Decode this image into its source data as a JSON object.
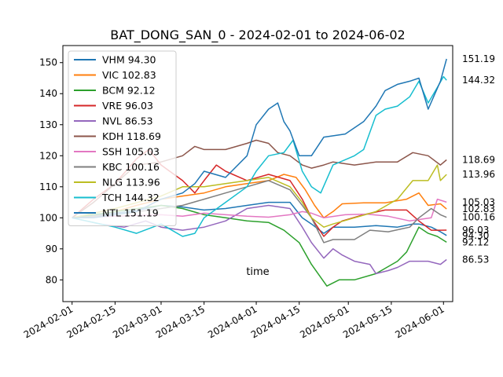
{
  "chart_data": {
    "type": "line",
    "title": "BAT_DONG_SAN_0 - 2024-02-01 to 2024-06-02",
    "xlabel": "time",
    "ylabel": "",
    "xlim": [
      "2024-01-29",
      "2024-06-04"
    ],
    "ylim": [
      73,
      155.5
    ],
    "x_ticks": [
      "2024-02-01",
      "2024-02-15",
      "2024-03-01",
      "2024-03-15",
      "2024-04-01",
      "2024-04-15",
      "2024-05-01",
      "2024-05-15",
      "2024-06-01"
    ],
    "y_ticks": [
      80,
      90,
      100,
      110,
      120,
      130,
      140,
      150
    ],
    "grid": false,
    "legend_position": "upper-left",
    "series": [
      {
        "name": "VHM",
        "last_label": "VHM 94.30",
        "end_value": "94.30",
        "color": "#1f77b4",
        "points": [
          [
            "2024-02-01",
            100
          ],
          [
            "2024-02-08",
            100.8
          ],
          [
            "2024-02-15",
            101.5
          ],
          [
            "2024-02-22",
            102.3
          ],
          [
            "2024-03-01",
            104
          ],
          [
            "2024-03-08",
            103.5
          ],
          [
            "2024-03-15",
            102.5
          ],
          [
            "2024-03-22",
            103
          ],
          [
            "2024-03-29",
            104
          ],
          [
            "2024-04-05",
            105
          ],
          [
            "2024-04-12",
            105
          ],
          [
            "2024-04-16",
            100
          ],
          [
            "2024-04-19",
            98
          ],
          [
            "2024-04-23",
            95
          ],
          [
            "2024-04-26",
            97
          ],
          [
            "2024-05-03",
            97
          ],
          [
            "2024-05-10",
            97.5
          ],
          [
            "2024-05-17",
            97
          ],
          [
            "2024-05-22",
            98
          ],
          [
            "2024-05-24",
            98
          ],
          [
            "2024-05-28",
            97
          ],
          [
            "2024-05-31",
            95.5
          ],
          [
            "2024-06-02",
            94.3
          ]
        ]
      },
      {
        "name": "VIC",
        "last_label": "VIC 102.83",
        "end_value": "102.83",
        "color": "#ff7f0e",
        "points": [
          [
            "2024-02-01",
            100
          ],
          [
            "2024-02-08",
            101
          ],
          [
            "2024-02-15",
            102
          ],
          [
            "2024-02-22",
            104
          ],
          [
            "2024-03-01",
            106
          ],
          [
            "2024-03-08",
            107
          ],
          [
            "2024-03-15",
            108
          ],
          [
            "2024-03-22",
            110
          ],
          [
            "2024-03-29",
            111
          ],
          [
            "2024-04-05",
            112
          ],
          [
            "2024-04-10",
            114
          ],
          [
            "2024-04-14",
            113
          ],
          [
            "2024-04-17",
            109
          ],
          [
            "2024-04-20",
            104
          ],
          [
            "2024-04-23",
            100
          ],
          [
            "2024-04-26",
            102
          ],
          [
            "2024-04-29",
            104.5
          ],
          [
            "2024-05-06",
            104.8
          ],
          [
            "2024-05-13",
            104.8
          ],
          [
            "2024-05-20",
            106
          ],
          [
            "2024-05-24",
            108
          ],
          [
            "2024-05-27",
            104
          ],
          [
            "2024-05-31",
            104.5
          ],
          [
            "2024-06-02",
            102.83
          ]
        ]
      },
      {
        "name": "BCM",
        "last_label": "BCM 92.12",
        "end_value": "92.12",
        "color": "#2ca02c",
        "points": [
          [
            "2024-02-01",
            100
          ],
          [
            "2024-02-15",
            102
          ],
          [
            "2024-03-01",
            104
          ],
          [
            "2024-03-08",
            103
          ],
          [
            "2024-03-15",
            101
          ],
          [
            "2024-03-22",
            100
          ],
          [
            "2024-03-29",
            99
          ],
          [
            "2024-04-05",
            98.5
          ],
          [
            "2024-04-10",
            96
          ],
          [
            "2024-04-15",
            92
          ],
          [
            "2024-04-19",
            85
          ],
          [
            "2024-04-24",
            78
          ],
          [
            "2024-04-28",
            80
          ],
          [
            "2024-05-03",
            80
          ],
          [
            "2024-05-10",
            82
          ],
          [
            "2024-05-17",
            86
          ],
          [
            "2024-05-20",
            89
          ],
          [
            "2024-05-24",
            97
          ],
          [
            "2024-05-27",
            95
          ],
          [
            "2024-05-30",
            94
          ],
          [
            "2024-06-02",
            92.12
          ]
        ]
      },
      {
        "name": "VRE",
        "last_label": "VRE 96.03",
        "end_value": "96.03",
        "color": "#d62728",
        "points": [
          [
            "2024-02-01",
            100
          ],
          [
            "2024-02-08",
            106
          ],
          [
            "2024-02-15",
            111
          ],
          [
            "2024-02-22",
            119
          ],
          [
            "2024-02-26",
            122
          ],
          [
            "2024-03-01",
            117
          ],
          [
            "2024-03-08",
            112
          ],
          [
            "2024-03-12",
            108
          ],
          [
            "2024-03-15",
            112
          ],
          [
            "2024-03-19",
            117
          ],
          [
            "2024-03-22",
            115
          ],
          [
            "2024-03-29",
            112
          ],
          [
            "2024-04-05",
            114
          ],
          [
            "2024-04-12",
            112
          ],
          [
            "2024-04-16",
            106
          ],
          [
            "2024-04-19",
            100
          ],
          [
            "2024-04-23",
            94
          ],
          [
            "2024-04-26",
            97
          ],
          [
            "2024-04-29",
            99
          ],
          [
            "2024-05-06",
            101
          ],
          [
            "2024-05-13",
            102.5
          ],
          [
            "2024-05-20",
            102.5
          ],
          [
            "2024-05-24",
            99
          ],
          [
            "2024-05-28",
            96
          ],
          [
            "2024-05-31",
            96
          ],
          [
            "2024-06-02",
            96.03
          ]
        ]
      },
      {
        "name": "NVL",
        "last_label": "NVL 86.53",
        "end_value": "86.53",
        "color": "#9467bd",
        "points": [
          [
            "2024-02-01",
            100
          ],
          [
            "2024-02-10",
            98
          ],
          [
            "2024-02-18",
            97
          ],
          [
            "2024-02-25",
            99
          ],
          [
            "2024-03-01",
            97
          ],
          [
            "2024-03-08",
            96
          ],
          [
            "2024-03-15",
            97
          ],
          [
            "2024-03-22",
            99
          ],
          [
            "2024-03-29",
            103
          ],
          [
            "2024-04-05",
            104
          ],
          [
            "2024-04-12",
            103
          ],
          [
            "2024-04-16",
            97
          ],
          [
            "2024-04-19",
            92
          ],
          [
            "2024-04-23",
            87
          ],
          [
            "2024-04-26",
            90
          ],
          [
            "2024-04-29",
            88
          ],
          [
            "2024-05-03",
            86
          ],
          [
            "2024-05-08",
            85
          ],
          [
            "2024-05-10",
            82
          ],
          [
            "2024-05-14",
            83
          ],
          [
            "2024-05-17",
            84
          ],
          [
            "2024-05-21",
            86
          ],
          [
            "2024-05-27",
            86
          ],
          [
            "2024-05-31",
            85
          ],
          [
            "2024-06-02",
            86.53
          ]
        ]
      },
      {
        "name": "KDH",
        "last_label": "KDH 118.69",
        "end_value": "118.69",
        "color": "#8c564b",
        "points": [
          [
            "2024-02-01",
            100
          ],
          [
            "2024-02-08",
            105
          ],
          [
            "2024-02-15",
            111
          ],
          [
            "2024-02-22",
            117
          ],
          [
            "2024-03-01",
            118
          ],
          [
            "2024-03-08",
            120
          ],
          [
            "2024-03-12",
            123
          ],
          [
            "2024-03-15",
            122
          ],
          [
            "2024-03-22",
            122
          ],
          [
            "2024-03-29",
            124
          ],
          [
            "2024-04-01",
            125
          ],
          [
            "2024-04-05",
            124
          ],
          [
            "2024-04-08",
            121
          ],
          [
            "2024-04-12",
            120
          ],
          [
            "2024-04-16",
            117
          ],
          [
            "2024-04-19",
            116
          ],
          [
            "2024-04-23",
            117
          ],
          [
            "2024-04-26",
            118
          ],
          [
            "2024-05-03",
            117
          ],
          [
            "2024-05-10",
            118
          ],
          [
            "2024-05-17",
            118
          ],
          [
            "2024-05-22",
            121
          ],
          [
            "2024-05-27",
            120
          ],
          [
            "2024-05-31",
            117
          ],
          [
            "2024-06-02",
            118.69
          ]
        ]
      },
      {
        "name": "SSH",
        "last_label": "SSH 105.03",
        "end_value": "105.03",
        "color": "#e377c2",
        "points": [
          [
            "2024-02-01",
            100
          ],
          [
            "2024-02-15",
            100.5
          ],
          [
            "2024-03-01",
            101
          ],
          [
            "2024-03-08",
            100.5
          ],
          [
            "2024-03-15",
            101.5
          ],
          [
            "2024-03-22",
            101
          ],
          [
            "2024-03-29",
            100.5
          ],
          [
            "2024-04-05",
            100.2
          ],
          [
            "2024-04-12",
            101
          ],
          [
            "2024-04-16",
            102
          ],
          [
            "2024-04-19",
            101.5
          ],
          [
            "2024-04-23",
            100
          ],
          [
            "2024-04-30",
            101
          ],
          [
            "2024-05-07",
            101.2
          ],
          [
            "2024-05-14",
            100.5
          ],
          [
            "2024-05-21",
            99
          ],
          [
            "2024-05-28",
            100
          ],
          [
            "2024-05-30",
            106
          ],
          [
            "2024-06-02",
            105.03
          ]
        ]
      },
      {
        "name": "KBC",
        "last_label": "KBC 100.16",
        "end_value": "100.16",
        "color": "#7f7f7f",
        "points": [
          [
            "2024-02-01",
            100
          ],
          [
            "2024-02-15",
            101
          ],
          [
            "2024-03-01",
            103
          ],
          [
            "2024-03-08",
            104
          ],
          [
            "2024-03-15",
            106
          ],
          [
            "2024-03-22",
            108
          ],
          [
            "2024-03-29",
            110
          ],
          [
            "2024-04-05",
            112
          ],
          [
            "2024-04-12",
            109
          ],
          [
            "2024-04-16",
            104
          ],
          [
            "2024-04-19",
            100
          ],
          [
            "2024-04-23",
            92
          ],
          [
            "2024-04-26",
            93
          ],
          [
            "2024-05-03",
            93
          ],
          [
            "2024-05-08",
            96
          ],
          [
            "2024-05-14",
            95.5
          ],
          [
            "2024-05-21",
            97
          ],
          [
            "2024-05-24",
            100
          ],
          [
            "2024-05-28",
            103
          ],
          [
            "2024-05-31",
            101
          ],
          [
            "2024-06-02",
            100.16
          ]
        ]
      },
      {
        "name": "NLG",
        "last_label": "NLG 113.96",
        "end_value": "113.96",
        "color": "#bcbd22",
        "points": [
          [
            "2024-02-01",
            100
          ],
          [
            "2024-02-15",
            103
          ],
          [
            "2024-03-01",
            107
          ],
          [
            "2024-03-08",
            110
          ],
          [
            "2024-03-15",
            110
          ],
          [
            "2024-03-22",
            111
          ],
          [
            "2024-03-29",
            112
          ],
          [
            "2024-04-05",
            113
          ],
          [
            "2024-04-12",
            110
          ],
          [
            "2024-04-16",
            105
          ],
          [
            "2024-04-19",
            100
          ],
          [
            "2024-04-23",
            97
          ],
          [
            "2024-04-26",
            98
          ],
          [
            "2024-05-03",
            100
          ],
          [
            "2024-05-10",
            102
          ],
          [
            "2024-05-17",
            106
          ],
          [
            "2024-05-22",
            112
          ],
          [
            "2024-05-27",
            112
          ],
          [
            "2024-05-30",
            117
          ],
          [
            "2024-05-31",
            112
          ],
          [
            "2024-06-02",
            113.96
          ]
        ]
      },
      {
        "name": "TCH",
        "last_label": "TCH 144.32",
        "end_value": "144.32",
        "color": "#17becf",
        "points": [
          [
            "2024-02-01",
            100
          ],
          [
            "2024-02-15",
            97
          ],
          [
            "2024-02-22",
            95
          ],
          [
            "2024-03-01",
            98
          ],
          [
            "2024-03-08",
            94
          ],
          [
            "2024-03-12",
            95
          ],
          [
            "2024-03-15",
            100
          ],
          [
            "2024-03-22",
            105
          ],
          [
            "2024-03-29",
            110
          ],
          [
            "2024-04-01",
            115
          ],
          [
            "2024-04-05",
            120
          ],
          [
            "2024-04-10",
            121
          ],
          [
            "2024-04-13",
            125
          ],
          [
            "2024-04-16",
            115
          ],
          [
            "2024-04-19",
            110
          ],
          [
            "2024-04-22",
            108
          ],
          [
            "2024-04-26",
            117
          ],
          [
            "2024-05-03",
            120
          ],
          [
            "2024-05-06",
            122
          ],
          [
            "2024-05-10",
            133
          ],
          [
            "2024-05-13",
            135
          ],
          [
            "2024-05-17",
            136
          ],
          [
            "2024-05-21",
            139
          ],
          [
            "2024-05-24",
            144
          ],
          [
            "2024-05-27",
            137
          ],
          [
            "2024-05-30",
            142
          ],
          [
            "2024-06-01",
            145.5
          ],
          [
            "2024-06-02",
            144.32
          ]
        ]
      },
      {
        "name": "NTL",
        "last_label": "NTL 151.19",
        "end_value": "151.19",
        "color": "#1f77b4",
        "points": [
          [
            "2024-02-01",
            100
          ],
          [
            "2024-02-08",
            100
          ],
          [
            "2024-02-15",
            101
          ],
          [
            "2024-02-22",
            102
          ],
          [
            "2024-03-01",
            106
          ],
          [
            "2024-03-08",
            108
          ],
          [
            "2024-03-12",
            111
          ],
          [
            "2024-03-15",
            115
          ],
          [
            "2024-03-22",
            113
          ],
          [
            "2024-03-29",
            120
          ],
          [
            "2024-04-01",
            130
          ],
          [
            "2024-04-05",
            135
          ],
          [
            "2024-04-08",
            137
          ],
          [
            "2024-04-10",
            131
          ],
          [
            "2024-04-12",
            128
          ],
          [
            "2024-04-15",
            120
          ],
          [
            "2024-04-19",
            120
          ],
          [
            "2024-04-23",
            126
          ],
          [
            "2024-04-30",
            127
          ],
          [
            "2024-05-06",
            131
          ],
          [
            "2024-05-10",
            136
          ],
          [
            "2024-05-13",
            141
          ],
          [
            "2024-05-17",
            143
          ],
          [
            "2024-05-21",
            144
          ],
          [
            "2024-05-24",
            145
          ],
          [
            "2024-05-27",
            135
          ],
          [
            "2024-05-31",
            144
          ],
          [
            "2024-06-02",
            151.19
          ]
        ]
      }
    ]
  }
}
